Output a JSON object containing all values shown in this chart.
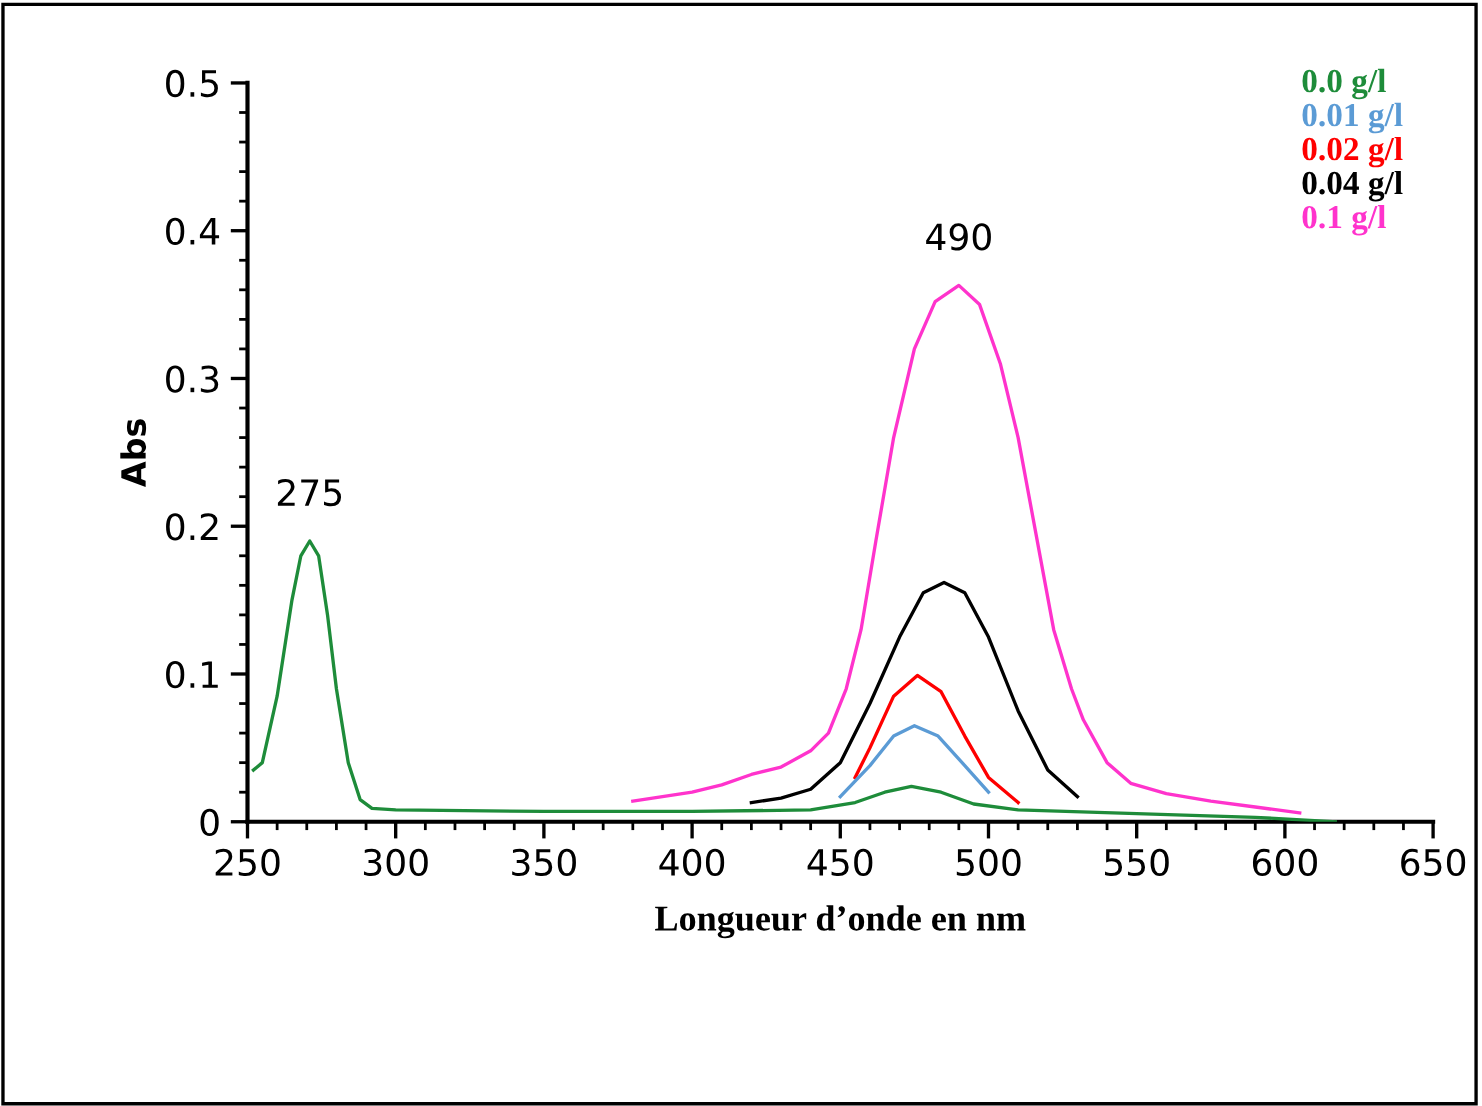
{
  "chart_data": {
    "type": "line",
    "xlabel": "Longueur d’onde en nm",
    "ylabel": "Abs",
    "xlim": [
      250,
      650
    ],
    "xticks": [
      250,
      300,
      350,
      400,
      450,
      500,
      550,
      600,
      650
    ],
    "ylim": [
      0,
      0.5
    ],
    "yticks": [
      0,
      0.1,
      0.2,
      0.3,
      0.4,
      0.5
    ],
    "grid": false,
    "legend": "top right",
    "marker": "none",
    "line_style": "solid",
    "annotations": [
      {
        "text": "275",
        "x": 271,
        "y": 0.19
      },
      {
        "text": "490",
        "x": 490,
        "y": 0.363
      }
    ],
    "series": [
      {
        "name": "0.0 g/l",
        "color": "#1e8c3a",
        "x": [
          252,
          255,
          260,
          265,
          268,
          271,
          274,
          277,
          280,
          284,
          288,
          292,
          300,
          350,
          400,
          440,
          455,
          465,
          474,
          484,
          495,
          510,
          590,
          617
        ],
        "values": [
          0.035,
          0.04,
          0.085,
          0.15,
          0.18,
          0.19,
          0.18,
          0.14,
          0.09,
          0.04,
          0.015,
          0.009,
          0.008,
          0.007,
          0.007,
          0.008,
          0.013,
          0.02,
          0.024,
          0.02,
          0.012,
          0.008,
          0.003,
          0.0
        ]
      },
      {
        "name": "0.01 g/l",
        "color": "#5b9bd5",
        "x": [
          450,
          460,
          468,
          475,
          483,
          492,
          500
        ],
        "values": [
          0.017,
          0.038,
          0.058,
          0.065,
          0.058,
          0.038,
          0.02
        ]
      },
      {
        "name": "0.02 g/l",
        "color": "#ff0000",
        "x": [
          455,
          460,
          468,
          476,
          484,
          492,
          500,
          510
        ],
        "values": [
          0.03,
          0.05,
          0.085,
          0.099,
          0.088,
          0.058,
          0.03,
          0.013
        ]
      },
      {
        "name": "0.04 g/l",
        "color": "#000000",
        "x": [
          420,
          430,
          440,
          450,
          460,
          470,
          478,
          485,
          492,
          500,
          510,
          520,
          530
        ],
        "values": [
          0.013,
          0.016,
          0.022,
          0.04,
          0.08,
          0.125,
          0.155,
          0.162,
          0.155,
          0.125,
          0.075,
          0.035,
          0.017
        ]
      },
      {
        "name": "0.1 g/l",
        "color": "#ff33cc",
        "x": [
          380,
          400,
          410,
          420,
          430,
          440,
          446,
          452,
          457,
          462,
          468,
          475,
          482,
          490,
          497,
          504,
          510,
          516,
          522,
          528,
          532,
          540,
          548,
          560,
          575,
          590,
          605
        ],
        "values": [
          0.014,
          0.02,
          0.025,
          0.032,
          0.037,
          0.048,
          0.06,
          0.09,
          0.13,
          0.19,
          0.26,
          0.32,
          0.352,
          0.363,
          0.35,
          0.31,
          0.26,
          0.195,
          0.13,
          0.09,
          0.069,
          0.04,
          0.026,
          0.019,
          0.014,
          0.01,
          0.006
        ]
      }
    ]
  }
}
